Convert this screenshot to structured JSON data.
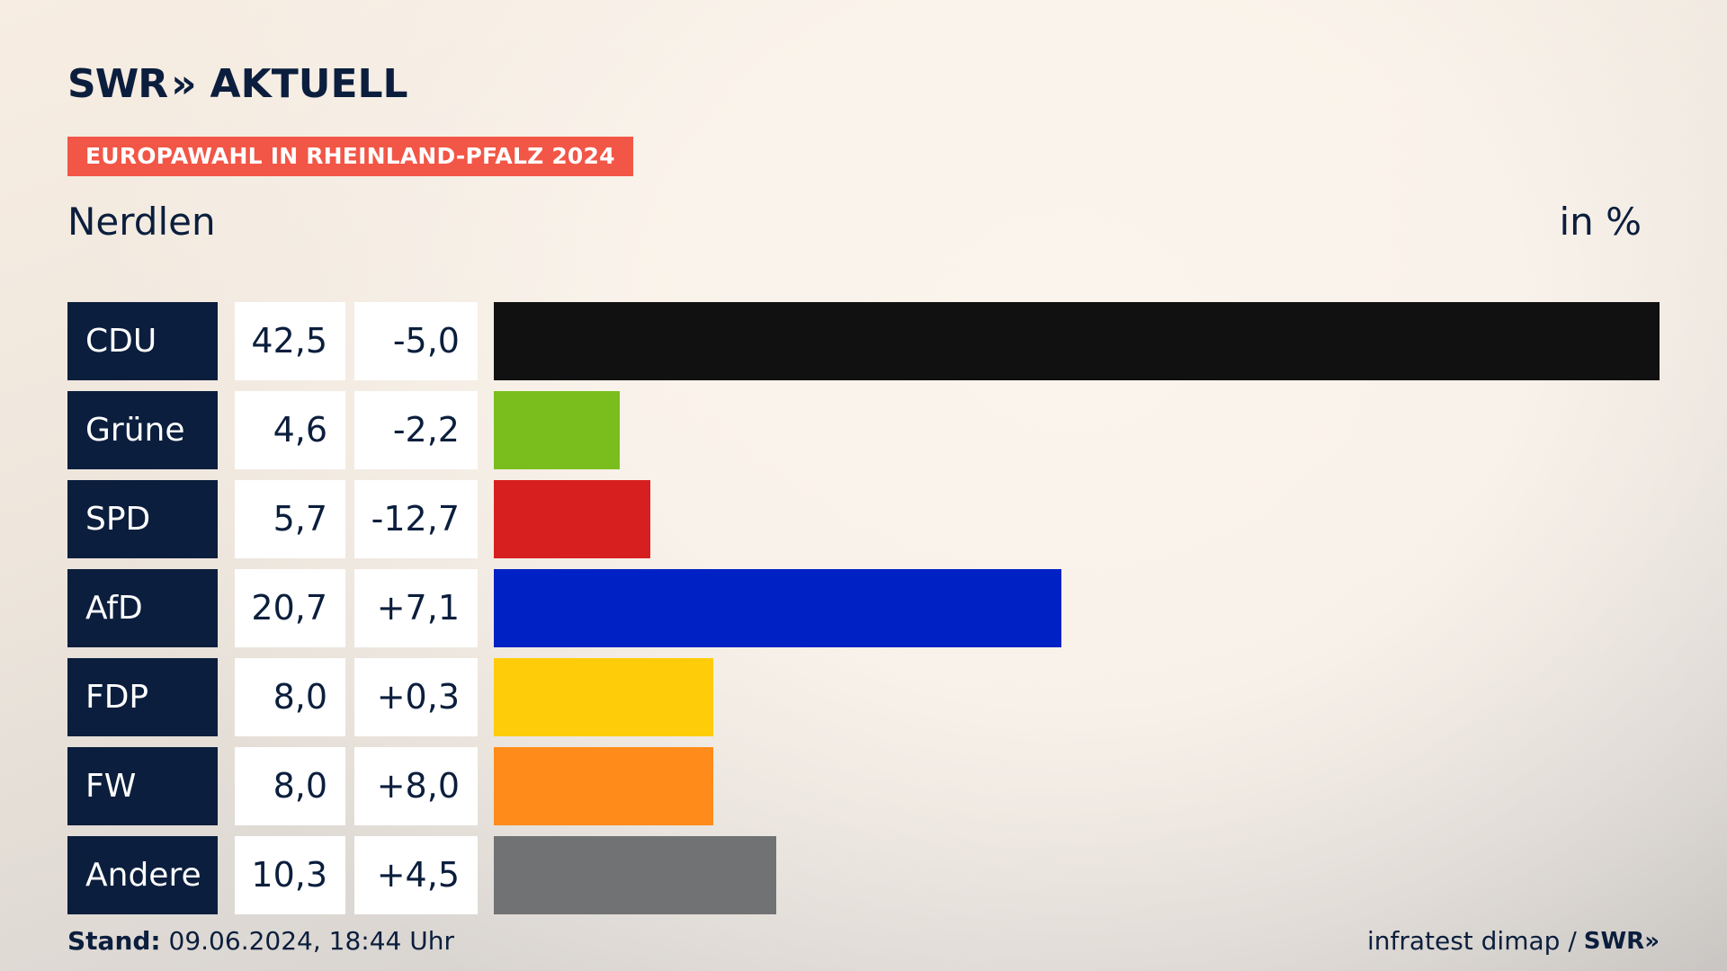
{
  "header": {
    "brand_main": "SWR",
    "brand_chevron": "»",
    "brand_sub": "AKTUELL",
    "badge": "EUROPAWAHL IN RHEINLAND-PFALZ 2024",
    "region": "Nerdlen",
    "unit": "in %"
  },
  "colors": {
    "CDU": "#111111",
    "Grüne": "#7abe1e",
    "SPD": "#d71f1f",
    "AfD": "#0021c4",
    "FDP": "#ffcc0a",
    "FW": "#ff8c1a",
    "Andere": "#717273"
  },
  "chart_data": {
    "type": "bar",
    "orientation": "horizontal",
    "title": "Nerdlen",
    "ylabel": "in %",
    "categories": [
      "CDU",
      "Grüne",
      "SPD",
      "AfD",
      "FDP",
      "FW",
      "Andere"
    ],
    "values": [
      42.5,
      4.6,
      5.7,
      20.7,
      8.0,
      8.0,
      10.3
    ],
    "value_labels": [
      "42,5",
      "4,6",
      "5,7",
      "20,7",
      "8,0",
      "8,0",
      "10,3"
    ],
    "change_labels": [
      "-5,0",
      "-2,2",
      "-12,7",
      "+7,1",
      "+0,3",
      "+8,0",
      "+4,5"
    ],
    "changes": [
      -5.0,
      -2.2,
      -12.7,
      7.1,
      0.3,
      8.0,
      4.5
    ],
    "xlim": [
      0,
      42.5
    ],
    "grid": false
  },
  "footer": {
    "stand_label": "Stand:",
    "stand_value": "09.06.2024, 18:44 Uhr",
    "source": "infratest dimap /",
    "source_brand": "SWR»"
  }
}
